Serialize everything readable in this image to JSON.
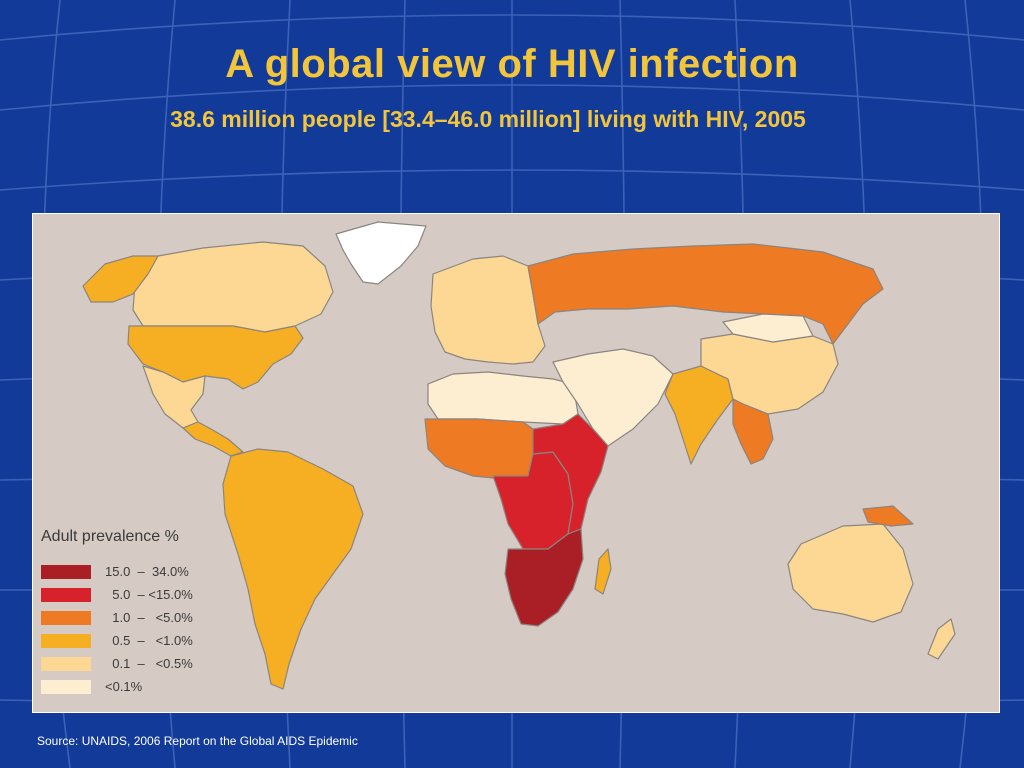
{
  "slide": {
    "title": "A global view of HIV infection",
    "subtitle": "38.6 million people [33.4–46.0 million] living with HIV, 2005",
    "source": "Source: UNAIDS, 2006 Report on the Global AIDS Epidemic"
  },
  "colors": {
    "background": "#123a98",
    "title": "#f2c53a",
    "ocean": "#d5cbc4",
    "border_gray": "#8a8580"
  },
  "legend": {
    "title": "Adult prevalence %",
    "items": [
      {
        "label": "15.0  –  34.0%",
        "color": "#a91f25"
      },
      {
        "label": "  5.0  – <15.0%",
        "color": "#d8222b"
      },
      {
        "label": "  1.0  –   <5.0%",
        "color": "#ee7a24"
      },
      {
        "label": "  0.5  –   <1.0%",
        "color": "#f6ae22"
      },
      {
        "label": "  0.1  –   <0.5%",
        "color": "#fcd894"
      },
      {
        "label": "<0.1%",
        "color": "#fdeed1"
      }
    ]
  },
  "regions": [
    {
      "name": "Greenland",
      "level": "no data"
    },
    {
      "name": "Canada",
      "level": "0.1 – <0.5%"
    },
    {
      "name": "Alaska",
      "level": "0.5 – <1.0%"
    },
    {
      "name": "United States",
      "level": "0.5 – <1.0%"
    },
    {
      "name": "Mexico",
      "level": "0.1 – <0.5%"
    },
    {
      "name": "Central America",
      "level": "0.5 – <1.0%"
    },
    {
      "name": "South America",
      "level": "0.5 – <1.0%"
    },
    {
      "name": "Europe",
      "level": "0.1 – <0.5%"
    },
    {
      "name": "Russia",
      "level": "1.0 – <5.0%"
    },
    {
      "name": "North Africa",
      "level": "<0.1%"
    },
    {
      "name": "Middle East",
      "level": "<0.1%"
    },
    {
      "name": "West Africa",
      "level": "1.0 – <5.0%"
    },
    {
      "name": "Central Africa",
      "level": "5.0 – <15.0%"
    },
    {
      "name": "East Africa",
      "level": "5.0 – <15.0%"
    },
    {
      "name": "Southern Africa",
      "level": "15.0 – 34.0%"
    },
    {
      "name": "Madagascar",
      "level": "0.5 – <1.0%"
    },
    {
      "name": "India",
      "level": "0.5 – <1.0%"
    },
    {
      "name": "China",
      "level": "0.1 – <0.5%"
    },
    {
      "name": "Mongolia",
      "level": "<0.1%"
    },
    {
      "name": "Southeast Asia",
      "level": "1.0 – <5.0%"
    },
    {
      "name": "Australia",
      "level": "0.1 – <0.5%"
    },
    {
      "name": "New Zealand",
      "level": "0.1 – <0.5%"
    },
    {
      "name": "Papua New Guinea",
      "level": "1.0 – <5.0%"
    }
  ]
}
